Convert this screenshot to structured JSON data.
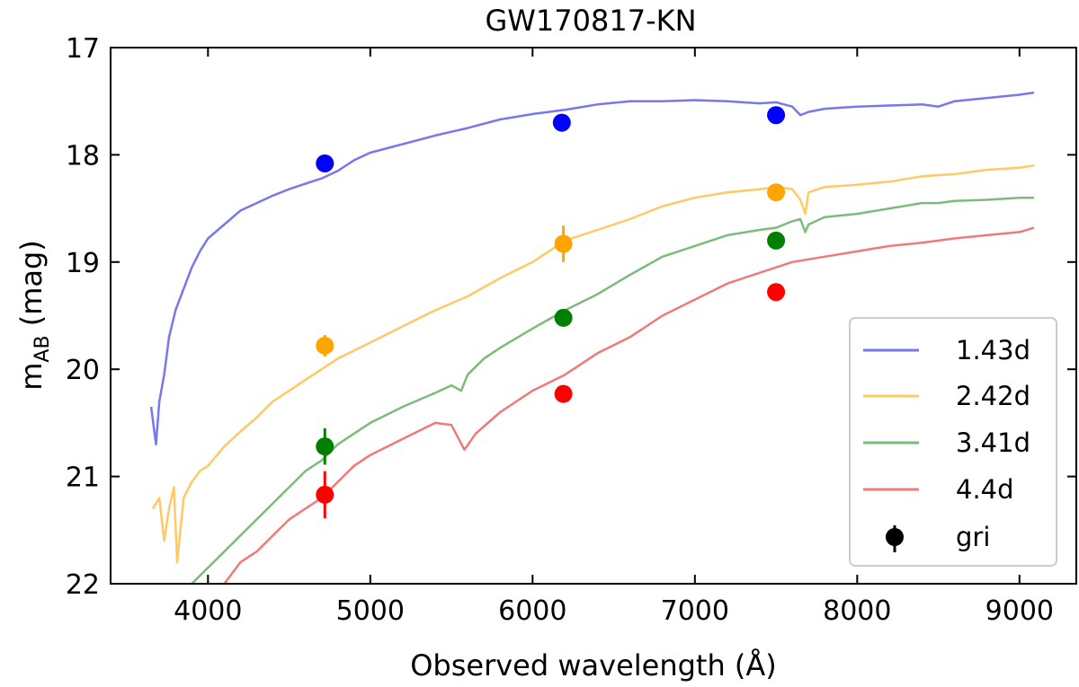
{
  "chart_data": {
    "type": "line",
    "title": "GW170817-KN",
    "xlabel": "Observed wavelength (Å)",
    "ylabel_main": "m",
    "ylabel_sub": "AB",
    "ylabel_unit": " (mag)",
    "xlim": [
      3400,
      9350
    ],
    "ylim": [
      22,
      17
    ],
    "y_inverted": true,
    "x_ticks": [
      4000,
      5000,
      6000,
      7000,
      8000,
      9000
    ],
    "x_tick_labels": [
      "4000",
      "5000",
      "6000",
      "7000",
      "8000",
      "9000"
    ],
    "y_ticks": [
      17,
      18,
      19,
      20,
      21,
      22
    ],
    "y_tick_labels": [
      "17",
      "18",
      "19",
      "20",
      "21",
      "22"
    ],
    "legend_position": "bottom-right",
    "series": [
      {
        "name": "1.43d",
        "color": "#7777ee",
        "x": [
          3650,
          3680,
          3700,
          3730,
          3760,
          3800,
          3850,
          3900,
          3950,
          4000,
          4100,
          4200,
          4300,
          4400,
          4500,
          4600,
          4700,
          4800,
          4900,
          5000,
          5200,
          5400,
          5600,
          5800,
          6000,
          6200,
          6400,
          6600,
          6800,
          7000,
          7200,
          7400,
          7500,
          7600,
          7650,
          7700,
          7800,
          7900,
          8000,
          8200,
          8400,
          8500,
          8600,
          8800,
          9000,
          9090
        ],
        "y": [
          20.35,
          20.7,
          20.3,
          20.05,
          19.7,
          19.45,
          19.25,
          19.05,
          18.9,
          18.78,
          18.65,
          18.52,
          18.45,
          18.38,
          18.32,
          18.27,
          18.22,
          18.15,
          18.05,
          17.98,
          17.9,
          17.82,
          17.75,
          17.67,
          17.62,
          17.58,
          17.53,
          17.5,
          17.5,
          17.49,
          17.5,
          17.52,
          17.51,
          17.55,
          17.63,
          17.6,
          17.57,
          17.56,
          17.55,
          17.54,
          17.53,
          17.55,
          17.5,
          17.47,
          17.44,
          17.42
        ]
      },
      {
        "name": "2.42d",
        "color": "#ffc966",
        "x": [
          3660,
          3700,
          3730,
          3760,
          3790,
          3810,
          3850,
          3900,
          3950,
          4000,
          4100,
          4200,
          4300,
          4400,
          4500,
          4600,
          4700,
          4800,
          5000,
          5200,
          5400,
          5600,
          5800,
          6000,
          6200,
          6400,
          6600,
          6800,
          7000,
          7200,
          7400,
          7500,
          7600,
          7650,
          7680,
          7700,
          7800,
          8000,
          8200,
          8400,
          8600,
          8800,
          9000,
          9090
        ],
        "y": [
          21.3,
          21.2,
          21.6,
          21.3,
          21.1,
          21.8,
          21.2,
          21.05,
          20.95,
          20.9,
          20.72,
          20.58,
          20.45,
          20.3,
          20.2,
          20.1,
          20.0,
          19.9,
          19.75,
          19.6,
          19.45,
          19.32,
          19.15,
          19.0,
          18.8,
          18.7,
          18.6,
          18.48,
          18.4,
          18.35,
          18.32,
          18.3,
          18.32,
          18.42,
          18.55,
          18.35,
          18.3,
          18.28,
          18.25,
          18.2,
          18.18,
          18.14,
          18.12,
          18.1
        ]
      },
      {
        "name": "3.41d",
        "color": "#7cbb7c",
        "x": [
          3900,
          4000,
          4100,
          4200,
          4300,
          4400,
          4500,
          4600,
          4700,
          4800,
          4900,
          5000,
          5200,
          5400,
          5500,
          5560,
          5600,
          5700,
          5800,
          6000,
          6200,
          6400,
          6600,
          6800,
          7000,
          7200,
          7400,
          7500,
          7600,
          7650,
          7680,
          7700,
          7800,
          8000,
          8200,
          8400,
          8500,
          8600,
          8800,
          9000,
          9090
        ],
        "y": [
          22.0,
          21.85,
          21.7,
          21.55,
          21.4,
          21.25,
          21.1,
          20.95,
          20.85,
          20.7,
          20.6,
          20.5,
          20.35,
          20.22,
          20.15,
          20.2,
          20.05,
          19.9,
          19.8,
          19.62,
          19.45,
          19.3,
          19.12,
          18.95,
          18.85,
          18.75,
          18.7,
          18.68,
          18.62,
          18.6,
          18.72,
          18.65,
          18.58,
          18.55,
          18.5,
          18.45,
          18.45,
          18.43,
          18.42,
          18.4,
          18.4
        ]
      },
      {
        "name": "4.4d",
        "color": "#f07a7a",
        "x": [
          4100,
          4200,
          4300,
          4400,
          4500,
          4600,
          4700,
          4800,
          4900,
          5000,
          5200,
          5400,
          5500,
          5580,
          5650,
          5800,
          6000,
          6200,
          6400,
          6600,
          6800,
          7000,
          7200,
          7400,
          7600,
          7800,
          8000,
          8200,
          8400,
          8600,
          8800,
          9000,
          9090
        ],
        "y": [
          22.0,
          21.8,
          21.7,
          21.55,
          21.4,
          21.3,
          21.2,
          21.05,
          20.9,
          20.8,
          20.65,
          20.5,
          20.52,
          20.75,
          20.6,
          20.4,
          20.2,
          20.05,
          19.85,
          19.7,
          19.5,
          19.35,
          19.2,
          19.1,
          19.0,
          18.95,
          18.9,
          18.85,
          18.82,
          18.78,
          18.75,
          18.72,
          18.68
        ]
      }
    ],
    "photometry": {
      "name": "gri",
      "points": [
        {
          "x": 4720,
          "y": 18.08,
          "err": 0.0,
          "color": "#0000ff"
        },
        {
          "x": 6180,
          "y": 17.7,
          "err": 0.0,
          "color": "#0000ff"
        },
        {
          "x": 7500,
          "y": 17.63,
          "err": 0.0,
          "color": "#0000ff"
        },
        {
          "x": 4720,
          "y": 19.78,
          "err": 0.1,
          "color": "#ffa500"
        },
        {
          "x": 6190,
          "y": 18.83,
          "err": 0.17,
          "color": "#ffa500"
        },
        {
          "x": 7500,
          "y": 18.35,
          "err": 0.0,
          "color": "#ffa500"
        },
        {
          "x": 4720,
          "y": 20.72,
          "err": 0.17,
          "color": "#008000"
        },
        {
          "x": 6190,
          "y": 19.52,
          "err": 0.0,
          "color": "#008000"
        },
        {
          "x": 7500,
          "y": 18.8,
          "err": 0.0,
          "color": "#008000"
        },
        {
          "x": 4720,
          "y": 21.17,
          "err": 0.22,
          "color": "#ff0000"
        },
        {
          "x": 6190,
          "y": 20.23,
          "err": 0.0,
          "color": "#ff0000"
        },
        {
          "x": 7500,
          "y": 19.28,
          "err": 0.0,
          "color": "#ff0000"
        }
      ]
    }
  }
}
